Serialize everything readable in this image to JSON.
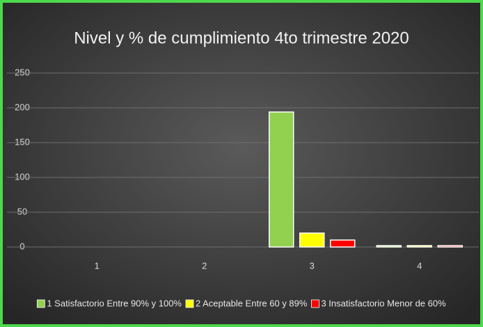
{
  "chart_data": {
    "type": "bar",
    "title": "Nivel y % de cumplimiento 4to trimestre 2020",
    "categories": [
      "1",
      "2",
      "3",
      "4"
    ],
    "series": [
      {
        "name": "1 Satisfactorio Entre 90% y 100%",
        "color": "#92d050",
        "values": [
          0,
          0,
          194,
          2
        ]
      },
      {
        "name": "2 Aceptable Entre 60 y 89%",
        "color": "#ffff00",
        "values": [
          0,
          0,
          20,
          2
        ]
      },
      {
        "name": "3 Insatisfactorio Menor de 60%",
        "color": "#ff0000",
        "values": [
          0,
          0,
          10,
          2
        ]
      }
    ],
    "ylim": [
      0,
      250
    ],
    "yticks": [
      0,
      50,
      100,
      150,
      200,
      250
    ],
    "grid": true,
    "legend": "bottom"
  }
}
